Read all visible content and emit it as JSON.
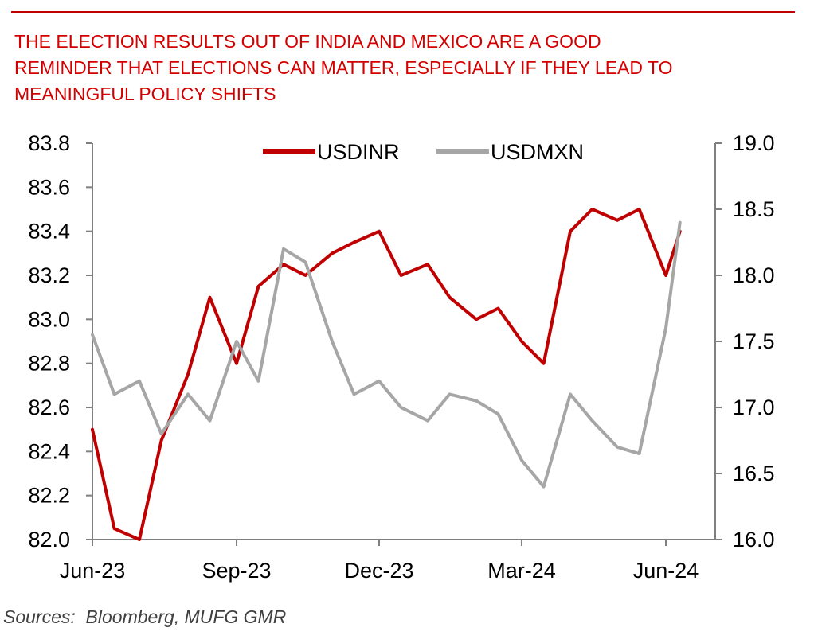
{
  "title_lines": [
    "THE ELECTION RESULTS OUT OF INDIA AND MEXICO ARE A GOOD",
    "REMINDER THAT ELECTIONS CAN MATTER, ESPECIALLY IF THEY LEAD TO",
    "MEANINGFUL POLICY SHIFTS"
  ],
  "source": "Sources:  Bloomberg, MUFG GMR",
  "colors": {
    "title": "#d40000",
    "rule": "#c00000",
    "usdinr": "#c00000",
    "usdmxn": "#a6a6a6",
    "axis": "#7f7f7f"
  },
  "chart_data": {
    "type": "line",
    "x_dates": [
      "2023-06-01",
      "2023-06-15",
      "2023-07-01",
      "2023-07-15",
      "2023-08-01",
      "2023-08-15",
      "2023-09-01",
      "2023-09-15",
      "2023-10-01",
      "2023-10-15",
      "2023-11-01",
      "2023-11-15",
      "2023-12-01",
      "2023-12-15",
      "2024-01-01",
      "2024-01-15",
      "2024-02-01",
      "2024-02-15",
      "2024-03-01",
      "2024-03-15",
      "2024-04-01",
      "2024-04-15",
      "2024-05-01",
      "2024-05-15",
      "2024-06-01",
      "2024-06-10"
    ],
    "x_ticks": [
      "Jun-23",
      "Sep-23",
      "Dec-23",
      "Mar-24",
      "Jun-24"
    ],
    "x_tick_dates": [
      "2023-06-01",
      "2023-09-01",
      "2023-12-01",
      "2024-03-01",
      "2024-06-01"
    ],
    "legend": "top-center",
    "grid": false,
    "series": [
      {
        "name": "USDINR",
        "axis": "left",
        "values": [
          82.5,
          82.05,
          82.0,
          82.45,
          82.75,
          83.1,
          82.8,
          83.15,
          83.25,
          83.2,
          83.3,
          83.35,
          83.4,
          83.2,
          83.25,
          83.1,
          83.0,
          83.05,
          82.9,
          82.8,
          83.4,
          83.5,
          83.45,
          83.5,
          83.2,
          83.4
        ]
      },
      {
        "name": "USDMXN",
        "axis": "right",
        "values": [
          17.55,
          17.1,
          17.2,
          16.8,
          17.1,
          16.9,
          17.5,
          17.2,
          18.2,
          18.1,
          17.5,
          17.1,
          17.2,
          17.0,
          16.9,
          17.1,
          17.05,
          16.95,
          16.6,
          16.4,
          17.1,
          16.9,
          16.7,
          16.65,
          17.6,
          18.4
        ]
      }
    ],
    "y_left": {
      "ticks": [
        "83.8",
        "83.6",
        "83.4",
        "83.2",
        "83.0",
        "82.8",
        "82.6",
        "82.4",
        "82.2",
        "82.0"
      ],
      "ylim": [
        82.0,
        83.8
      ]
    },
    "y_right": {
      "ticks": [
        "19.0",
        "18.5",
        "18.0",
        "17.5",
        "17.0",
        "16.5",
        "16.0"
      ],
      "ylim": [
        16.0,
        19.0
      ]
    }
  }
}
